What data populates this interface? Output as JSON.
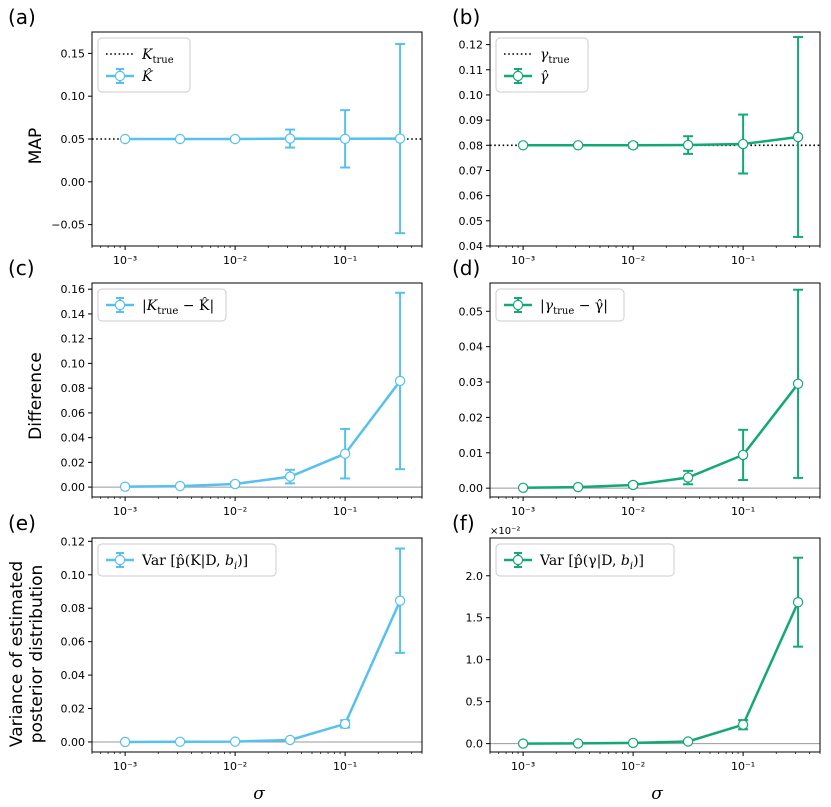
{
  "figure": {
    "row_labels": [
      "MAP",
      "Difference",
      "Variance of estimated",
      "posterior distribution"
    ],
    "xlabel": "σ"
  },
  "chart_data": [
    {
      "id": "a",
      "panel_label": "(a)",
      "type": "line",
      "xscale": "log",
      "xlim": [
        0.0005,
        0.5
      ],
      "ylim": [
        -0.075,
        0.175
      ],
      "yticks": [
        -0.05,
        0.0,
        0.05,
        0.1,
        0.15
      ],
      "ytick_labels": [
        "−0.05",
        "0.00",
        "0.05",
        "0.10",
        "0.15"
      ],
      "xtick_labels": [
        "10⁻³",
        "10⁻²",
        "10⁻¹"
      ],
      "color": "#56c1f0",
      "legend": [
        "K_true",
        "K̂"
      ],
      "hline": {
        "y": 0.05,
        "style": "dotted",
        "color": "#000000"
      },
      "x": [
        0.001,
        0.00316,
        0.01,
        0.0316,
        0.1,
        0.316
      ],
      "y": [
        0.05,
        0.05,
        0.05,
        0.0505,
        0.0502,
        0.0505
      ],
      "yerr": [
        0.0002,
        0.0005,
        0.0015,
        0.0105,
        0.0335,
        0.1105
      ]
    },
    {
      "id": "b",
      "panel_label": "(b)",
      "type": "line",
      "xscale": "log",
      "xlim": [
        0.0005,
        0.5
      ],
      "ylim": [
        0.04,
        0.125
      ],
      "yticks": [
        0.04,
        0.05,
        0.06,
        0.07,
        0.08,
        0.09,
        0.1,
        0.11,
        0.12
      ],
      "ytick_labels": [
        "0.04",
        "0.05",
        "0.06",
        "0.07",
        "0.08",
        "0.09",
        "0.10",
        "0.11",
        "0.12"
      ],
      "xtick_labels": [
        "10⁻³",
        "10⁻²",
        "10⁻¹"
      ],
      "color": "#13a878",
      "legend": [
        "γ_true",
        "γ̂"
      ],
      "hline": {
        "y": 0.08,
        "style": "dotted",
        "color": "#000000"
      },
      "x": [
        0.001,
        0.00316,
        0.01,
        0.0316,
        0.1,
        0.316
      ],
      "y": [
        0.08,
        0.08,
        0.08,
        0.0801,
        0.0805,
        0.0833
      ],
      "yerr": [
        0.0002,
        0.0004,
        0.0009,
        0.0035,
        0.0117,
        0.0397
      ]
    },
    {
      "id": "c",
      "panel_label": "(c)",
      "type": "line",
      "xscale": "log",
      "xlim": [
        0.0005,
        0.5
      ],
      "ylim": [
        -0.008,
        0.165
      ],
      "yticks": [
        0.0,
        0.02,
        0.04,
        0.06,
        0.08,
        0.1,
        0.12,
        0.14,
        0.16
      ],
      "ytick_labels": [
        "0.00",
        "0.02",
        "0.04",
        "0.06",
        "0.08",
        "0.10",
        "0.12",
        "0.14",
        "0.16"
      ],
      "xtick_labels": [
        "10⁻³",
        "10⁻²",
        "10⁻¹"
      ],
      "color": "#56c1f0",
      "legend": [
        "|K_true − K̂|"
      ],
      "hline": {
        "y": 0.0,
        "style": "solid",
        "color": "#999999"
      },
      "x": [
        0.001,
        0.00316,
        0.01,
        0.0316,
        0.1,
        0.316
      ],
      "y": [
        0.0003,
        0.0008,
        0.0025,
        0.0085,
        0.027,
        0.0858
      ],
      "yerr": [
        0.0002,
        0.0005,
        0.0015,
        0.0055,
        0.02,
        0.0713
      ]
    },
    {
      "id": "d",
      "panel_label": "(d)",
      "type": "line",
      "xscale": "log",
      "xlim": [
        0.0005,
        0.5
      ],
      "ylim": [
        -0.0025,
        0.058
      ],
      "yticks": [
        0.0,
        0.01,
        0.02,
        0.03,
        0.04,
        0.05
      ],
      "ytick_labels": [
        "0.00",
        "0.01",
        "0.02",
        "0.03",
        "0.04",
        "0.05"
      ],
      "xtick_labels": [
        "10⁻³",
        "10⁻²",
        "10⁻¹"
      ],
      "color": "#13a878",
      "legend": [
        "|γ_true − γ̂|"
      ],
      "hline": {
        "y": 0.0,
        "style": "solid",
        "color": "#999999"
      },
      "x": [
        0.001,
        0.00316,
        0.01,
        0.0316,
        0.1,
        0.316
      ],
      "y": [
        0.0001,
        0.0003,
        0.0009,
        0.003,
        0.0094,
        0.0295
      ],
      "yerr": [
        0.0001,
        0.0002,
        0.0006,
        0.0019,
        0.0071,
        0.0266
      ]
    },
    {
      "id": "e",
      "panel_label": "(e)",
      "type": "line",
      "xscale": "log",
      "xlim": [
        0.0005,
        0.5
      ],
      "ylim": [
        -0.006,
        0.122
      ],
      "yticks": [
        0.0,
        0.02,
        0.04,
        0.06,
        0.08,
        0.1,
        0.12
      ],
      "ytick_labels": [
        "0.00",
        "0.02",
        "0.04",
        "0.06",
        "0.08",
        "0.10",
        "0.12"
      ],
      "xtick_labels": [
        "10⁻³",
        "10⁻²",
        "10⁻¹"
      ],
      "color": "#56c1f0",
      "legend": [
        "Var [p̂(K|D, b_i)]"
      ],
      "hline": {
        "y": 0.0,
        "style": "solid",
        "color": "#999999"
      },
      "x": [
        0.001,
        0.00316,
        0.01,
        0.0316,
        0.1,
        0.316
      ],
      "y": [
        0.0,
        0.0001,
        0.0002,
        0.0012,
        0.0108,
        0.0845
      ],
      "yerr": [
        5e-05,
        0.0001,
        0.0002,
        0.0008,
        0.0022,
        0.0312
      ]
    },
    {
      "id": "f",
      "panel_label": "(f)",
      "type": "line",
      "xscale": "log",
      "xlim": [
        0.0005,
        0.5
      ],
      "ylim": [
        -0.1,
        2.45
      ],
      "yticks": [
        0.0,
        0.5,
        1.0,
        1.5,
        2.0
      ],
      "ytick_labels": [
        "0.0",
        "0.5",
        "1.0",
        "1.5",
        "2.0"
      ],
      "y_offset_label": "×10⁻²",
      "xtick_labels": [
        "10⁻³",
        "10⁻²",
        "10⁻¹"
      ],
      "color": "#13a878",
      "legend": [
        "Var [p̂(γ|D, b_i)]"
      ],
      "hline": {
        "y": 0.0,
        "style": "solid",
        "color": "#999999"
      },
      "x": [
        0.001,
        0.00316,
        0.01,
        0.0316,
        0.1,
        0.316
      ],
      "y": [
        0.0,
        0.002,
        0.008,
        0.025,
        0.225,
        1.685
      ],
      "yerr": [
        0.002,
        0.003,
        0.005,
        0.015,
        0.055,
        0.53
      ]
    }
  ]
}
